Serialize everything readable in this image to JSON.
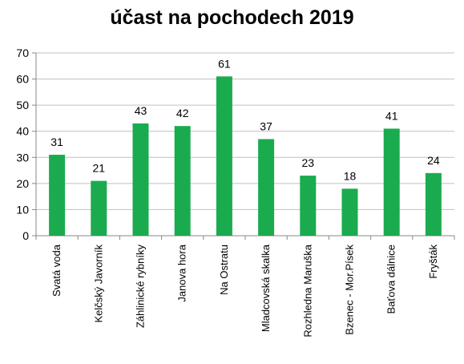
{
  "chart_data": {
    "type": "bar",
    "title": "účast na pochodech 2019",
    "xlabel": "",
    "ylabel": "",
    "categories": [
      "Svatá voda",
      "Kelčský Javorník",
      "Záhlinické rybníky",
      "Janova hora",
      "Na Ostratu",
      "Mladcovská skalka",
      "Rozhledna Maruška",
      "Bzenec - Mor.Písek",
      "Baťova dálnice",
      "Fryšták"
    ],
    "values": [
      31,
      21,
      43,
      42,
      61,
      37,
      23,
      18,
      41,
      24
    ],
    "ylim": [
      0,
      70
    ],
    "yticks": [
      0,
      10,
      20,
      30,
      40,
      50,
      60,
      70
    ],
    "grid": true,
    "legend": "none",
    "bar_color": "#1aab4e",
    "grid_color": "#c0c0c0"
  }
}
